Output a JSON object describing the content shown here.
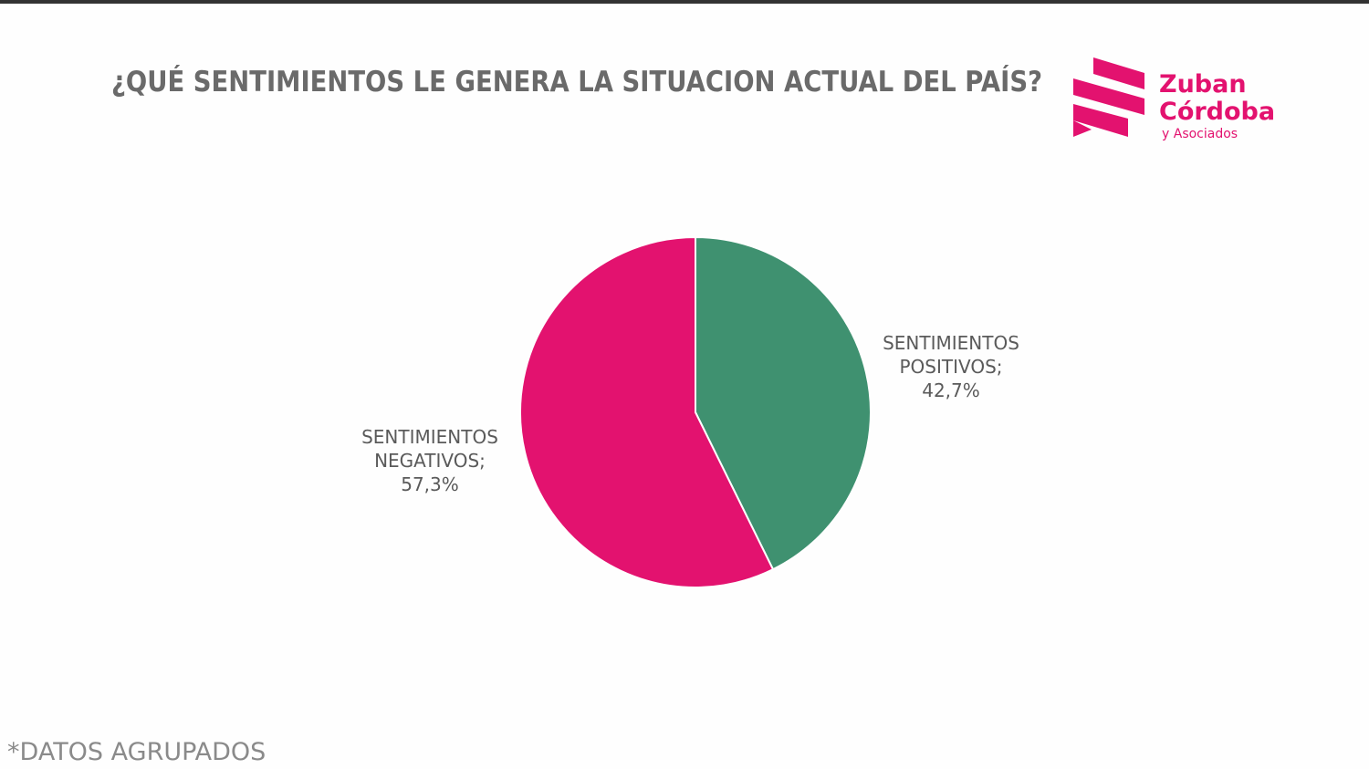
{
  "chart_data": {
    "type": "pie",
    "title": "¿QUÉ SENTIMIENTOS LE GENERA LA SITUACION ACTUAL DEL PAÍS?",
    "categories": [
      "SENTIMIENTOS POSITIVOS;",
      "SENTIMIENTOS NEGATIVOS;"
    ],
    "values": [
      42.7,
      57.3
    ],
    "value_labels": [
      "42,7%",
      "57,3%"
    ],
    "colors": [
      "#3f9170",
      "#e3126f"
    ],
    "footnote": "*DATOS AGRUPADOS"
  },
  "logo": {
    "line1": "Zuban",
    "line2": "Córdoba",
    "line3": "y Asociados"
  }
}
